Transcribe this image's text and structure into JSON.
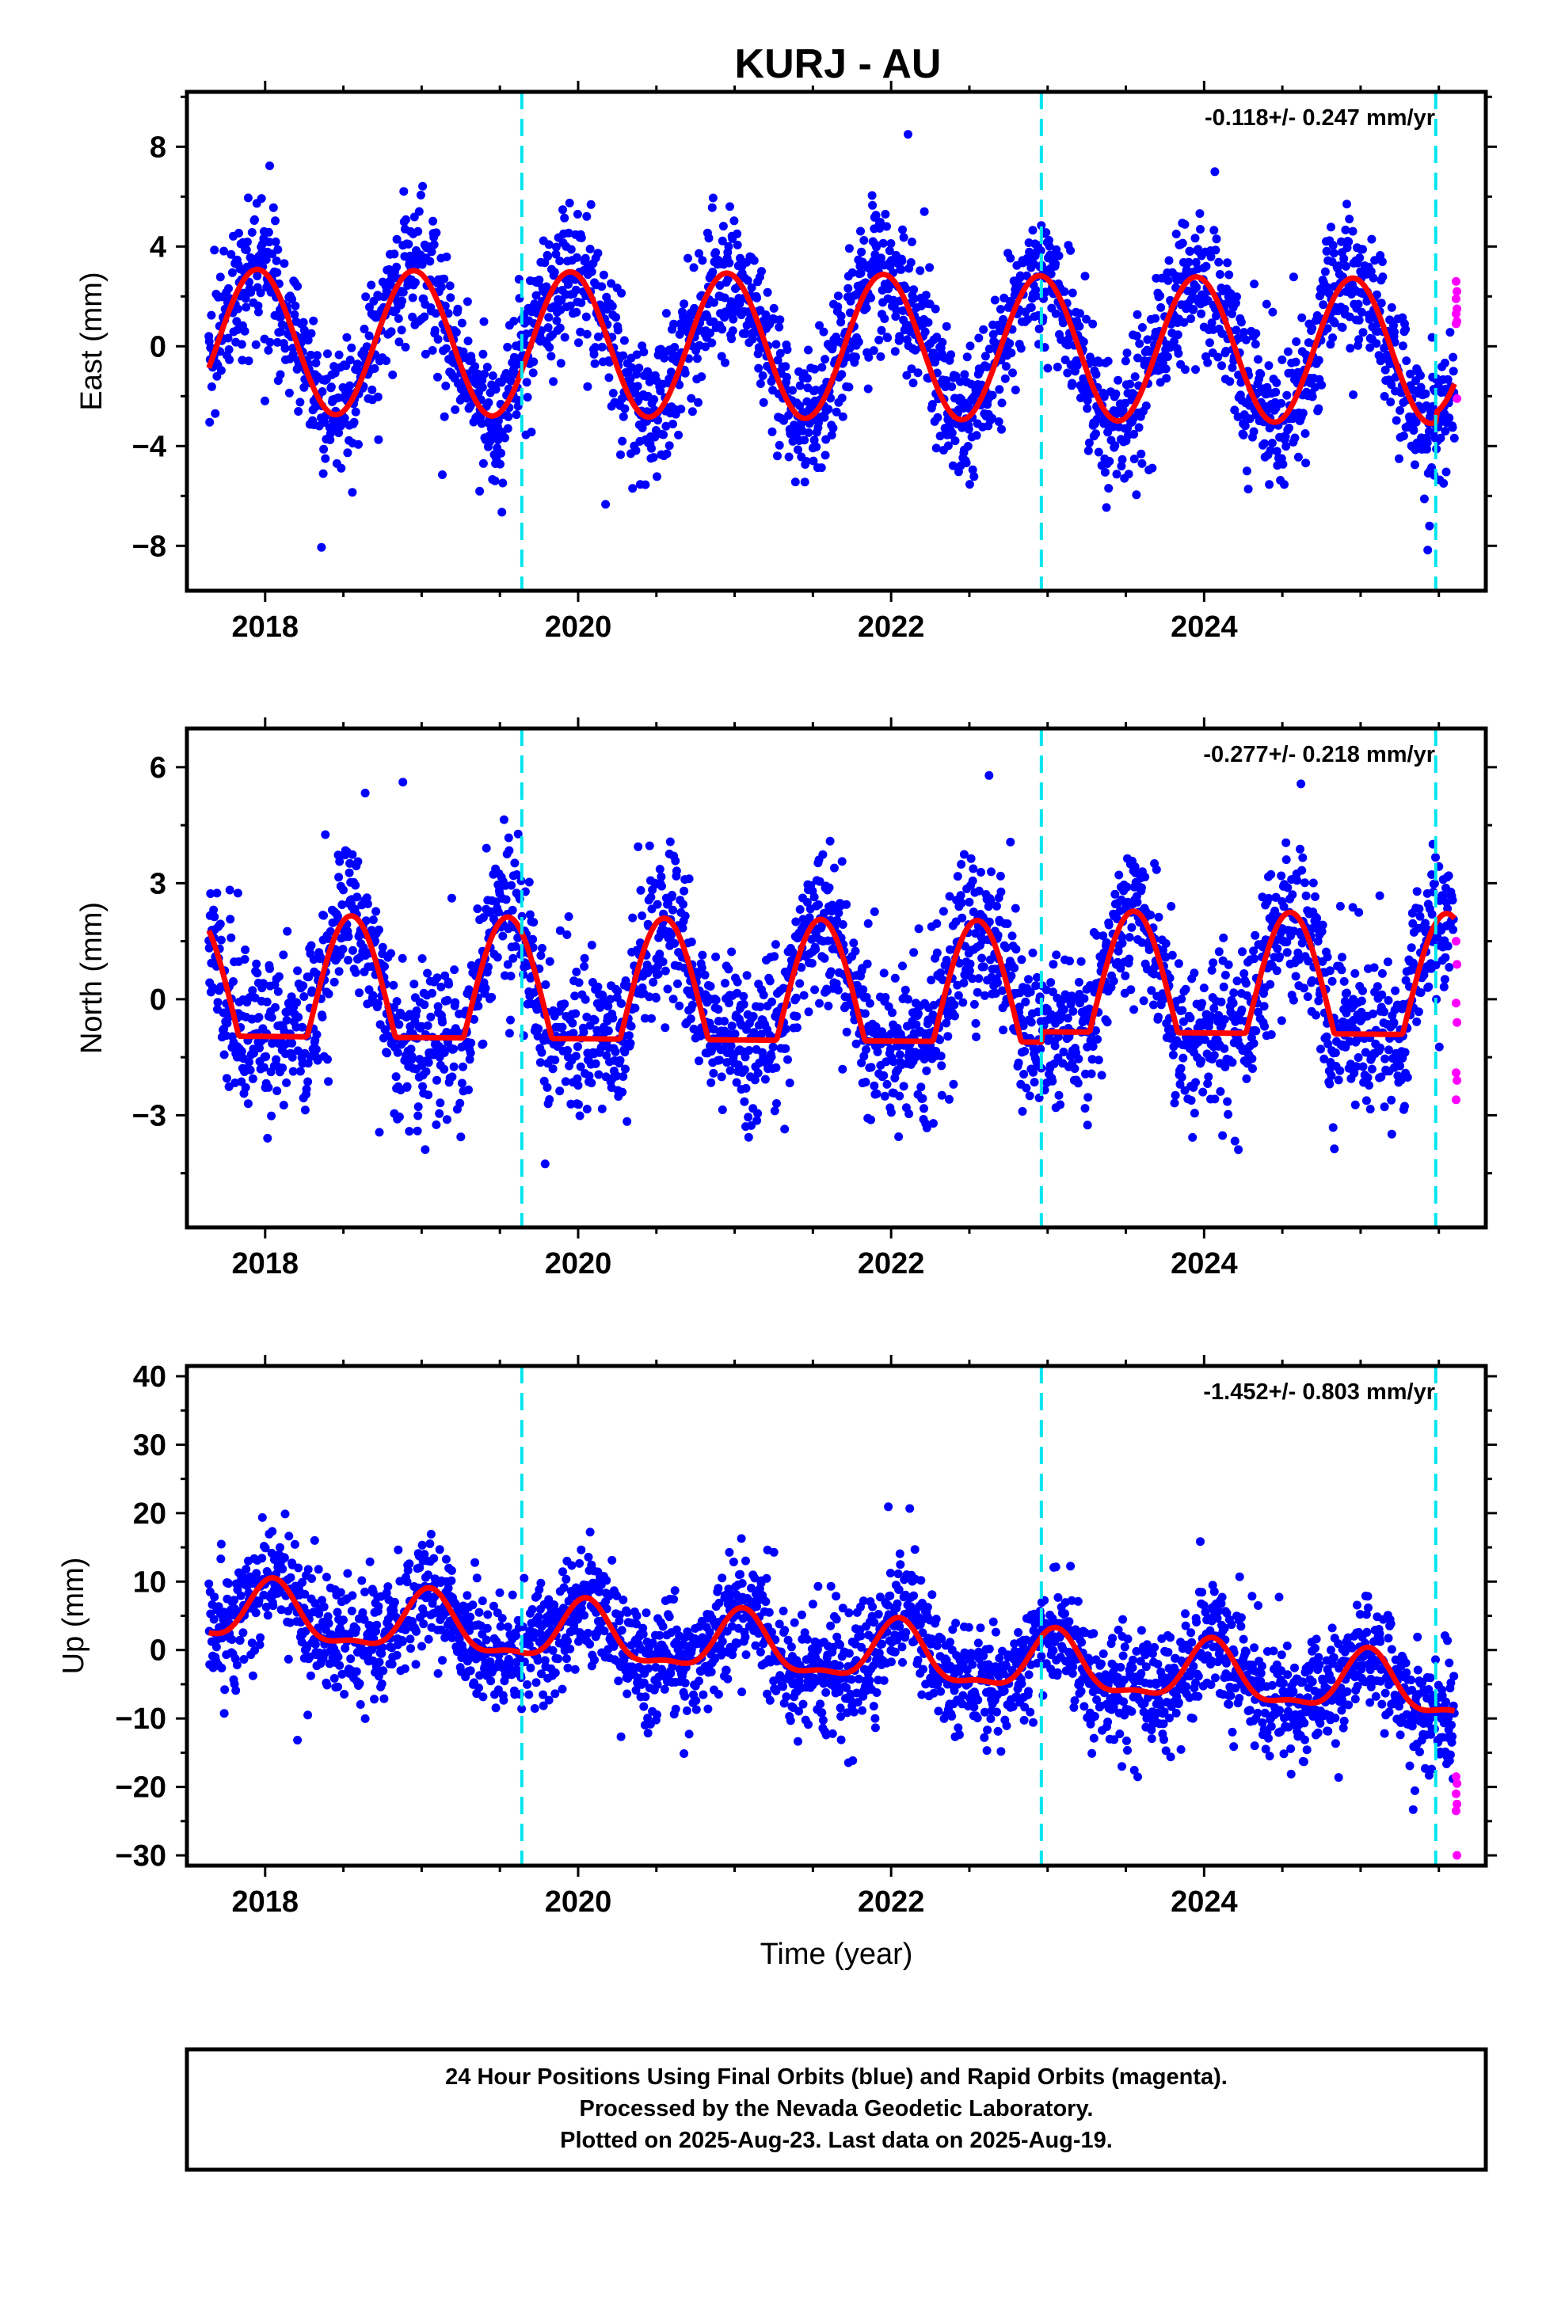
{
  "title": "KURJ - AU",
  "chart_data": [
    {
      "type": "scatter",
      "name": "east",
      "ylabel": "East (mm)",
      "xlabel": "",
      "rate": "-0.118+/- 0.247 mm/yr",
      "xlim": [
        2017.5,
        2025.8
      ],
      "ylim": [
        -9.8,
        10.2
      ],
      "yticks": [
        8,
        4,
        0,
        -4,
        -8
      ],
      "ytick_labels": [
        "8",
        "4",
        "0",
        "−4",
        "−8"
      ],
      "xticks": [
        2018,
        2020,
        2022,
        2024
      ],
      "breaks": [
        2019.64,
        2022.96,
        2025.48
      ],
      "model": {
        "annual_amp": 2.9,
        "peak": 2017.95,
        "offset": 0.2,
        "end_drop": -1.2
      },
      "scatter_noise": 1.4,
      "rapid_values": [
        2.6,
        2.2,
        1.9,
        1.5,
        1.3,
        1.0,
        0.9,
        -2.1
      ]
    },
    {
      "type": "scatter",
      "name": "north",
      "ylabel": "North (mm)",
      "xlabel": "",
      "rate": "-0.277+/- 0.218 mm/yr",
      "xlim": [
        2017.5,
        2025.8
      ],
      "ylim": [
        -5.9,
        7.0
      ],
      "yticks": [
        6,
        3,
        0,
        -3
      ],
      "ytick_labels": [
        "6",
        "3",
        "0",
        "−3"
      ],
      "xticks": [
        2018,
        2020,
        2022,
        2024
      ],
      "breaks": [
        2019.64,
        2022.96,
        2025.48
      ],
      "model": {
        "annual_amp": 2.2,
        "peak": 2018.55,
        "offset": 0.6,
        "jump": 0.9
      },
      "scatter_noise": 1.0,
      "rapid_values": [
        1.5,
        0.9,
        -0.1,
        -0.6,
        -1.9,
        -2.1,
        -2.6
      ]
    },
    {
      "type": "scatter",
      "name": "up",
      "ylabel": "Up (mm)",
      "xlabel": "Time (year)",
      "rate": "-1.452+/- 0.803 mm/yr",
      "xlim": [
        2017.5,
        2025.8
      ],
      "ylim": [
        -31.5,
        41.5
      ],
      "yticks": [
        40,
        30,
        20,
        10,
        0,
        -10,
        -20,
        -30
      ],
      "ytick_labels": [
        "40",
        "30",
        "20",
        "10",
        "0",
        "−10",
        "−20",
        "−30"
      ],
      "xticks": [
        2018,
        2020,
        2022,
        2024
      ],
      "breaks": [
        2019.64,
        2022.96,
        2025.48
      ],
      "model": {
        "annual_amp": 4.2,
        "peak": 2018.05,
        "offset": 5.5,
        "slope": -1.45
      },
      "scatter_noise": 4.2,
      "rapid_values": [
        -18.5,
        -19.5,
        -21.0,
        -22.5,
        -23.5,
        -30.0
      ]
    }
  ],
  "x_tick_labels": [
    "2018",
    "2020",
    "2022",
    "2024"
  ],
  "footer": {
    "line1": "24 Hour Positions Using Final Orbits (blue) and Rapid Orbits (magenta).",
    "line2": "Processed by the Nevada Geodetic Laboratory.",
    "line3": "Plotted on 2025-Aug-23. Last data on 2025-Aug-19."
  },
  "colors": {
    "final_points": "#0000ff",
    "rapid_points": "#ff00ff",
    "model_line": "#ff0000",
    "break_line": "#00e5ee",
    "frame": "#000000"
  }
}
